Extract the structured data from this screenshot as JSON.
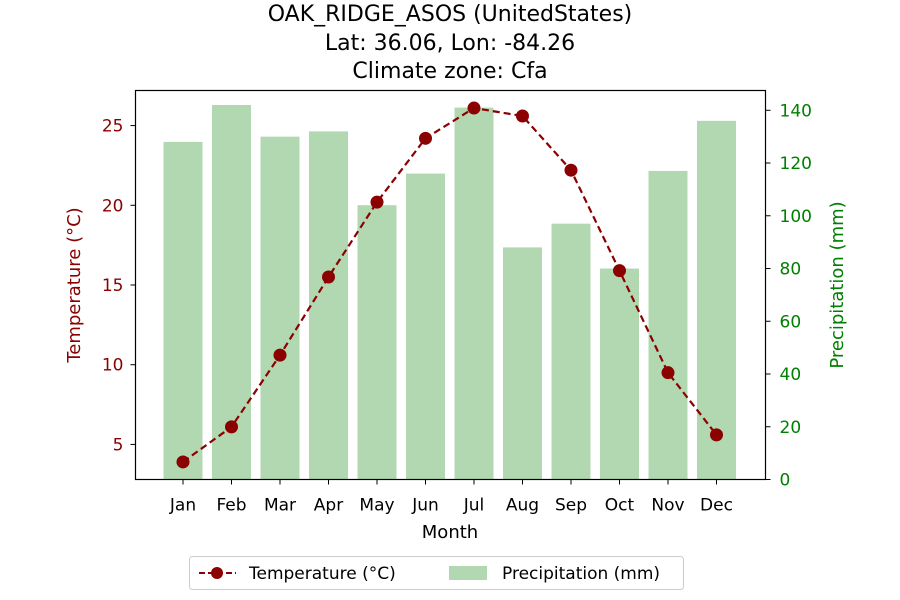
{
  "chart_data": {
    "type": "bar",
    "title": [
      "OAK_RIDGE_ASOS (UnitedStates)",
      "Lat: 36.06, Lon: -84.26",
      "Climate zone: Cfa"
    ],
    "xlabel": "Month",
    "categories": [
      "Jan",
      "Feb",
      "Mar",
      "Apr",
      "May",
      "Jun",
      "Jul",
      "Aug",
      "Sep",
      "Oct",
      "Nov",
      "Dec"
    ],
    "left_axis": {
      "label": "Temperature (°C)",
      "ylim": [
        2.8,
        27.2
      ],
      "ticks": [
        5,
        10,
        15,
        20,
        25
      ],
      "color": "#8b0000"
    },
    "right_axis": {
      "label": "Precipitation (mm)",
      "ylim": [
        0,
        147.5
      ],
      "ticks": [
        0,
        20,
        40,
        60,
        80,
        100,
        120,
        140
      ],
      "color": "#008000"
    },
    "series": [
      {
        "name": "Temperature (°C)",
        "type": "line",
        "axis": "left",
        "color": "#8b0000",
        "line_style": "dashed",
        "marker": "circle",
        "values": [
          3.9,
          6.1,
          10.6,
          15.5,
          20.2,
          24.2,
          26.1,
          25.6,
          22.2,
          15.9,
          9.5,
          5.6
        ]
      },
      {
        "name": "Precipitation (mm)",
        "type": "bar",
        "axis": "right",
        "color": "#b2d8b2",
        "values": [
          128,
          142,
          130,
          132,
          104,
          116,
          141,
          88,
          97,
          80,
          117,
          136
        ]
      }
    ],
    "legend": {
      "placement": "bottom-center",
      "entries": [
        "Temperature (°C)",
        "Precipitation (mm)"
      ]
    },
    "grid": false
  }
}
